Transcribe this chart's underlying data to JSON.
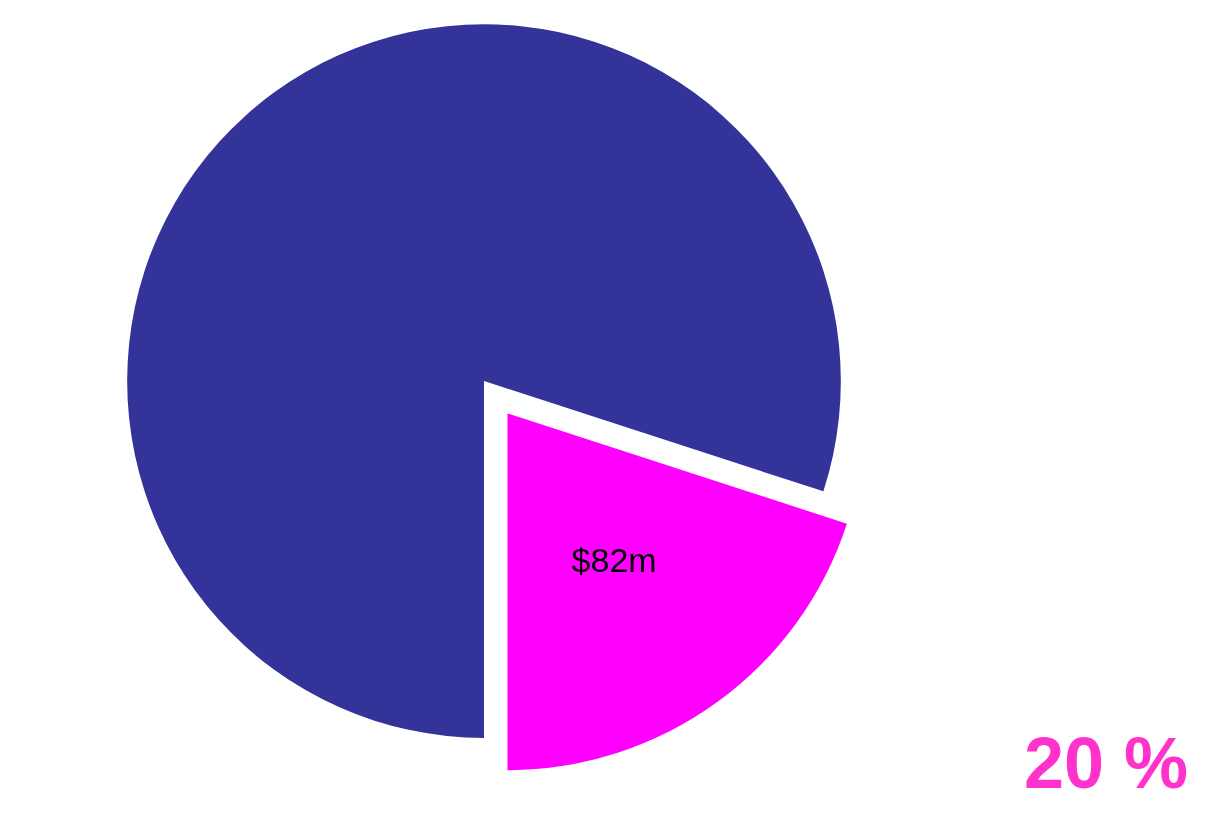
{
  "chart_data": {
    "type": "pie",
    "categories": [
      null,
      null
    ],
    "values": [
      328,
      82
    ],
    "colors": [
      "#333399",
      "#ff00ff"
    ],
    "value_labels": [
      null,
      "$82m"
    ],
    "annotations": [
      "20 %"
    ]
  }
}
